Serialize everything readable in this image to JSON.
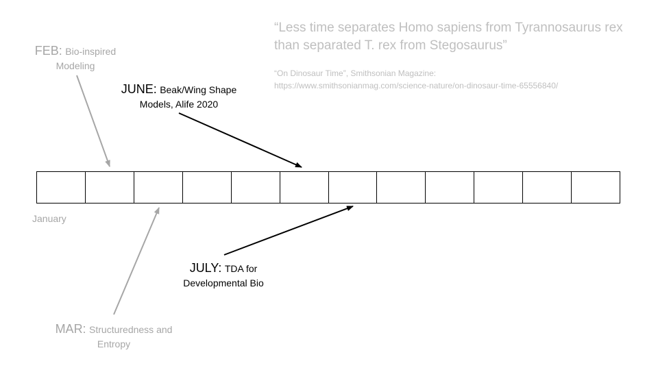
{
  "quote": {
    "text": "“Less time separates Homo sapiens from Tyrannosaurus rex than separated T. rex from Stegosaurus”",
    "citation_title": "“On Dinosaur Time”, Smithsonian Magazine:",
    "citation_url": "https://www.smithsonianmag.com/science-nature/on-dinosaur-time-65556840/"
  },
  "labels": {
    "feb": {
      "month": "FEB:",
      "line1": "Bio-inspired",
      "line2": "Modeling"
    },
    "june": {
      "month": "JUNE:",
      "line1": "Beak/Wing Shape",
      "line2": "Models, Alife 2020"
    },
    "july": {
      "month": "JULY:",
      "line1": "TDA for",
      "line2": "Developmental Bio"
    },
    "mar": {
      "month": "MAR:",
      "line1": "Structuredness and",
      "line2": "Entropy"
    },
    "january": "January"
  },
  "timeline": {
    "cells": 12
  },
  "colors": {
    "active": "#000000",
    "inactive": "#a6a6a6",
    "quote": "#bfbfbf"
  }
}
